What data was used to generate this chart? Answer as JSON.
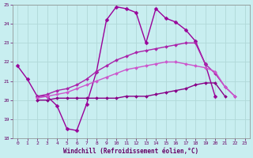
{
  "bg_color": "#c8eef0",
  "grid_color": "#b0d8d8",
  "xlim": [
    -0.5,
    23.5
  ],
  "ylim": [
    18,
    25
  ],
  "yticks": [
    18,
    19,
    20,
    21,
    22,
    23,
    24,
    25
  ],
  "xticks": [
    0,
    1,
    2,
    3,
    4,
    5,
    6,
    7,
    8,
    9,
    10,
    11,
    12,
    13,
    14,
    15,
    16,
    17,
    18,
    19,
    20,
    21,
    22,
    23
  ],
  "xlabel": "Windchill (Refroidissement éolien,°C)",
  "series": [
    {
      "x": [
        0,
        1,
        2,
        3,
        4,
        5,
        6,
        7,
        8,
        9,
        10,
        11,
        12,
        13,
        14,
        15,
        16,
        17,
        18,
        19,
        20
      ],
      "y": [
        21.8,
        21.1,
        20.2,
        20.2,
        19.7,
        18.5,
        18.4,
        19.8,
        21.5,
        24.2,
        24.9,
        24.8,
        24.6,
        23.0,
        24.8,
        24.3,
        24.1,
        23.7,
        23.1,
        21.9,
        20.2
      ],
      "color": "#990099",
      "lw": 1.0,
      "ms": 2.5
    },
    {
      "x": [
        2,
        3,
        4,
        5,
        6,
        7,
        8,
        9,
        10,
        11,
        12,
        13,
        14,
        15,
        16,
        17,
        18,
        19,
        20,
        21,
        22,
        23
      ],
      "y": [
        20.2,
        20.3,
        20.5,
        20.6,
        20.8,
        21.1,
        21.5,
        21.8,
        22.1,
        22.3,
        22.5,
        22.6,
        22.7,
        22.8,
        22.9,
        23.0,
        23.0,
        21.9,
        21.4,
        20.7,
        20.2,
        null
      ],
      "color": "#aa22aa",
      "lw": 1.0,
      "ms": 2.0
    },
    {
      "x": [
        2,
        3,
        4,
        5,
        6,
        7,
        8,
        9,
        10,
        11,
        12,
        13,
        14,
        15,
        16,
        17,
        18,
        19,
        20,
        21,
        22,
        23
      ],
      "y": [
        20.1,
        20.2,
        20.3,
        20.4,
        20.6,
        20.8,
        21.0,
        21.2,
        21.4,
        21.6,
        21.7,
        21.8,
        21.9,
        22.0,
        22.0,
        21.9,
        21.8,
        21.7,
        21.5,
        20.7,
        20.2,
        null
      ],
      "color": "#cc55cc",
      "lw": 1.0,
      "ms": 2.0
    },
    {
      "x": [
        2,
        3,
        4,
        5,
        6,
        7,
        8,
        9,
        10,
        11,
        12,
        13,
        14,
        15,
        16,
        17,
        18,
        19,
        20,
        21,
        22,
        23
      ],
      "y": [
        20.0,
        20.0,
        20.1,
        20.1,
        20.1,
        20.1,
        20.1,
        20.1,
        20.1,
        20.2,
        20.2,
        20.2,
        20.3,
        20.4,
        20.5,
        20.6,
        20.8,
        20.9,
        20.9,
        20.2,
        null,
        null
      ],
      "color": "#880088",
      "lw": 1.0,
      "ms": 2.0
    }
  ]
}
